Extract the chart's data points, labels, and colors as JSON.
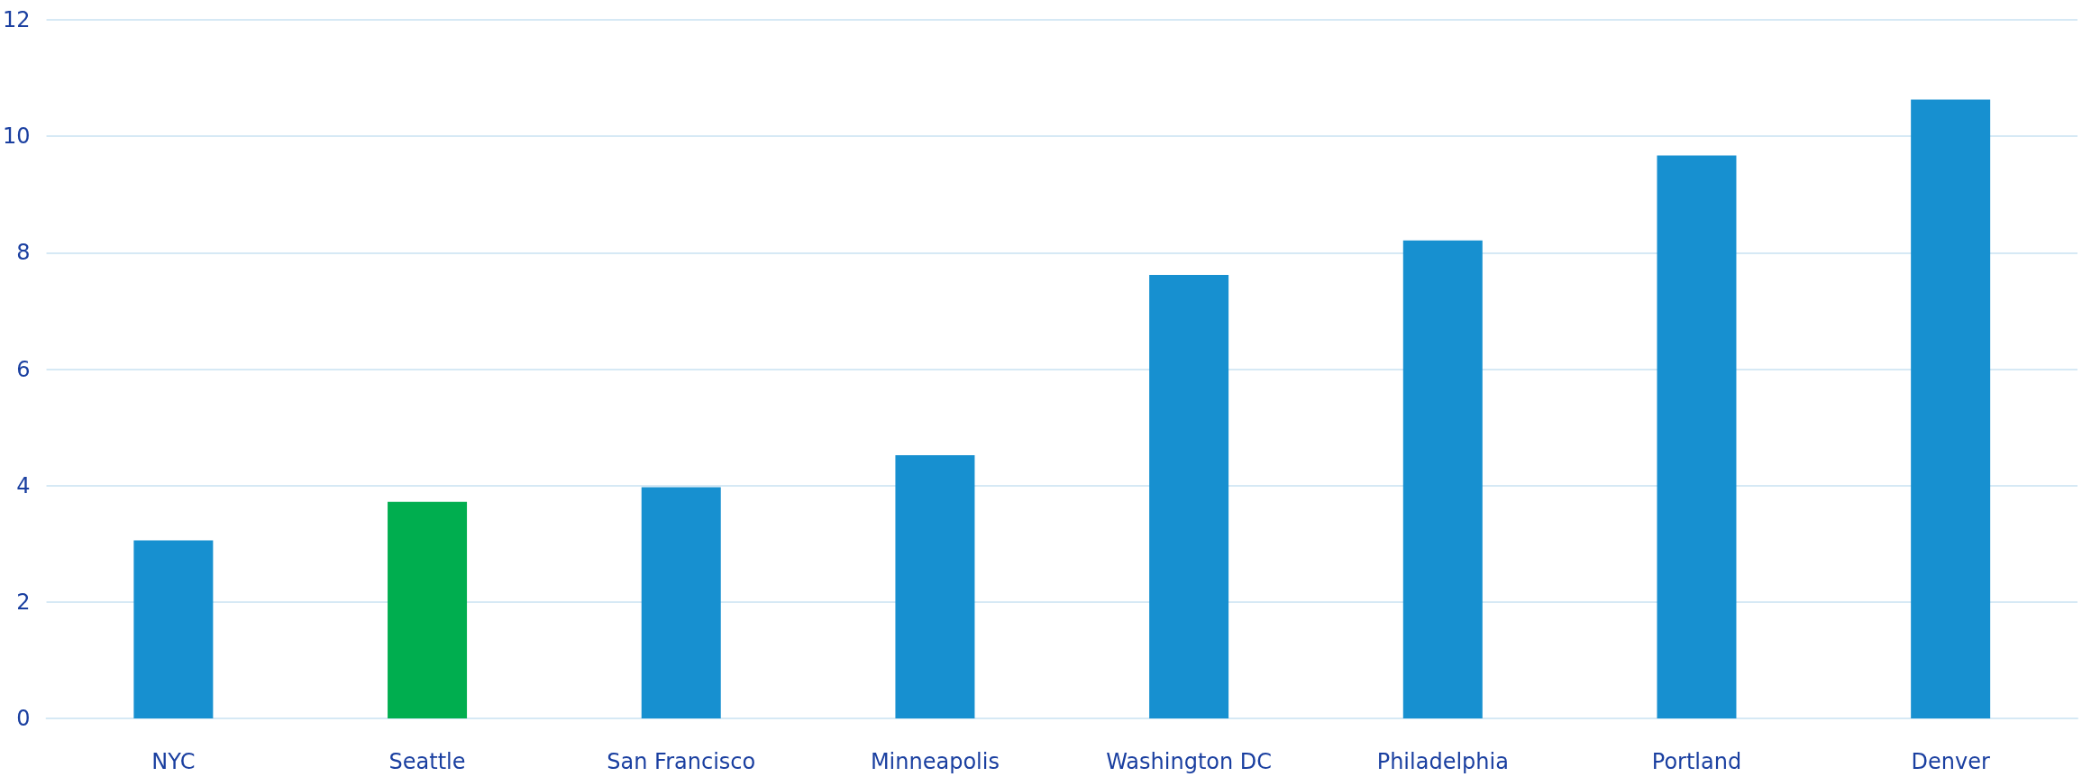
{
  "chart_data": {
    "type": "bar",
    "categories": [
      "NYC",
      "Seattle",
      "San Francisco",
      "Minneapolis",
      "Washington DC",
      "Philadelphia",
      "Portland",
      "Denver"
    ],
    "values": [
      3.06,
      3.72,
      3.97,
      4.52,
      7.62,
      8.21,
      9.67,
      10.63
    ],
    "colors": [
      "#1790d0",
      "#00ae4f",
      "#1790d0",
      "#1790d0",
      "#1790d0",
      "#1790d0",
      "#1790d0",
      "#1790d0"
    ],
    "ylim": [
      0,
      12
    ],
    "yticks": [
      0,
      2,
      4,
      6,
      8,
      10,
      12
    ],
    "grid": "y"
  }
}
